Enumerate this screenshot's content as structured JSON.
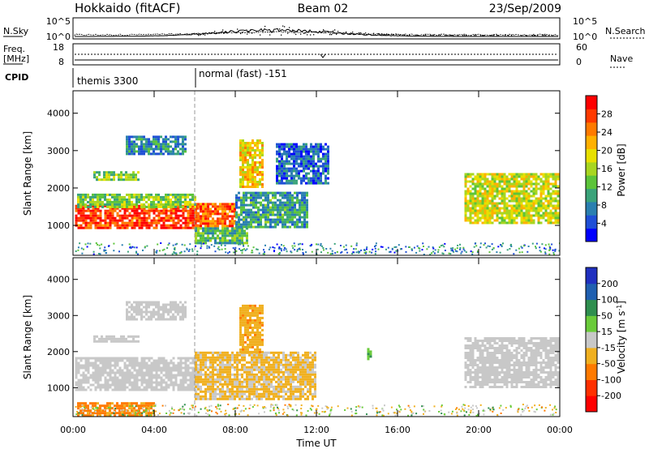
{
  "header": {
    "station": "Hokkaido (fitACF)",
    "beam": "Beam 02",
    "date": "23/Sep/2009"
  },
  "left_labels": {
    "nsky": "N.Sky",
    "freq": "Freq.",
    "freq_unit": "[MHz]",
    "cpid": "CPID"
  },
  "right_labels": {
    "nsearch": "N.Search",
    "nave": "Nave"
  },
  "mini_panels": {
    "noise_ticks_left": [
      "10^5",
      "10^0"
    ],
    "noise_ticks_right": [
      "10^5",
      "10^0"
    ],
    "freq_ticks_left": [
      "18",
      "8"
    ],
    "nave_ticks_right": [
      "60",
      "0"
    ]
  },
  "cpid": {
    "segments": [
      {
        "label": "themis 3300",
        "start_hour": 0
      },
      {
        "label": "normal (fast) -151",
        "start_hour": 6
      }
    ]
  },
  "chart_data": [
    {
      "type": "heatmap",
      "name": "power",
      "ylabel": "Slant Range [km]",
      "yticks": [
        "1000",
        "2000",
        "3000",
        "4000"
      ],
      "ylim": [
        200,
        4600
      ],
      "xlim": [
        0,
        24
      ],
      "colorbar": {
        "label": "Power [dB]",
        "ticks": [
          "4",
          "8",
          "12",
          "16",
          "20",
          "24",
          "28"
        ],
        "range": [
          0,
          32
        ],
        "colors": [
          "#0000ff",
          "#1f4fd6",
          "#2a7fb0",
          "#3aa37a",
          "#5cc43a",
          "#a8d620",
          "#e8e000",
          "#ffb000",
          "#ff7a00",
          "#ff3a00",
          "#ff0000"
        ]
      },
      "regions": [
        {
          "t0": 0.1,
          "t1": 6.2,
          "r0": 950,
          "r1": 1550,
          "level": 28
        },
        {
          "t0": 6.0,
          "t1": 8.0,
          "r0": 900,
          "r1": 1600,
          "level": 26
        },
        {
          "t0": 0.2,
          "t1": 6.0,
          "r0": 1500,
          "r1": 1850,
          "level": 14
        },
        {
          "t0": 6.0,
          "t1": 8.6,
          "r0": 550,
          "r1": 950,
          "level": 12
        },
        {
          "t0": 8.0,
          "t1": 11.5,
          "r0": 950,
          "r1": 1900,
          "level": 10
        },
        {
          "t0": 1.0,
          "t1": 3.2,
          "r0": 2250,
          "r1": 2450,
          "level": 14
        },
        {
          "t0": 2.6,
          "t1": 5.5,
          "r0": 2900,
          "r1": 3400,
          "level": 8
        },
        {
          "t0": 8.2,
          "t1": 9.4,
          "r0": 2000,
          "r1": 3300,
          "level": 20
        },
        {
          "t0": 10.0,
          "t1": 12.6,
          "r0": 2100,
          "r1": 3200,
          "level": 6
        },
        {
          "t0": 19.3,
          "t1": 24.0,
          "r0": 1050,
          "r1": 2400,
          "level": 18
        }
      ]
    },
    {
      "type": "heatmap",
      "name": "velocity",
      "ylabel": "Slant Range [km]",
      "yticks": [
        "1000",
        "2000",
        "3000",
        "4000"
      ],
      "ylim": [
        200,
        4600
      ],
      "xlim": [
        0,
        24
      ],
      "xticks": [
        "00:00",
        "04:00",
        "08:00",
        "12:00",
        "16:00",
        "20:00",
        "00:00"
      ],
      "xlabel": "Time UT",
      "colorbar": {
        "label": "Velocity [m s^-1]",
        "ticks": [
          "200",
          "100",
          "50",
          "15",
          "-15",
          "-50",
          "-100",
          "-200"
        ],
        "colors": [
          "#2030c0",
          "#2060b0",
          "#2f8f4f",
          "#6acb3a",
          "#c8c8c8",
          "#f0b020",
          "#ff7a00",
          "#ff3000",
          "#ff0000"
        ]
      },
      "regions": [
        {
          "t0": 0.1,
          "t1": 6.2,
          "r0": 950,
          "r1": 1850,
          "value": 0
        },
        {
          "t0": 6.0,
          "t1": 12.0,
          "r0": 700,
          "r1": 2000,
          "value": -20
        },
        {
          "t0": 1.0,
          "t1": 3.2,
          "r0": 2250,
          "r1": 2450,
          "value": 0
        },
        {
          "t0": 2.6,
          "t1": 5.5,
          "r0": 2900,
          "r1": 3400,
          "value": 0
        },
        {
          "t0": 8.2,
          "t1": 9.4,
          "r0": 2000,
          "r1": 3300,
          "value": -40
        },
        {
          "t0": 19.3,
          "t1": 24.0,
          "r0": 1050,
          "r1": 2400,
          "value": 0
        },
        {
          "t0": 14.5,
          "t1": 14.7,
          "r0": 1800,
          "r1": 2100,
          "value": 40
        },
        {
          "t0": 0.2,
          "t1": 4.0,
          "r0": 250,
          "r1": 600,
          "value": -60
        }
      ]
    }
  ]
}
